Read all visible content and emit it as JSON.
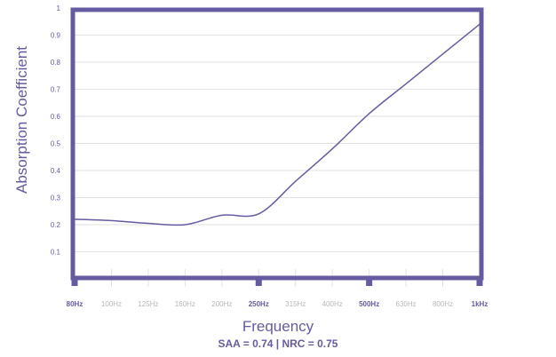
{
  "chart_data": {
    "type": "line",
    "title": "",
    "xlabel": "Frequency",
    "ylabel": "Absorption Coefficient",
    "subtitle": "SAA = 0.74 | NRC = 0.75",
    "categories": [
      "80Hz",
      "100Hz",
      "125Hz",
      "160Hz",
      "200Hz",
      "250Hz",
      "315Hz",
      "400Hz",
      "500Hz",
      "630Hz",
      "800Hz",
      "1kHz"
    ],
    "highlighted_ticks": [
      "80Hz",
      "250Hz",
      "500Hz",
      "1kHz"
    ],
    "yticks": [
      "0.1",
      "0.2",
      "0.3",
      "0.4",
      "0.5",
      "0.6",
      "0.7",
      "0.8",
      "0.9",
      "1"
    ],
    "ylim": [
      0,
      1
    ],
    "grid": true,
    "series": [
      {
        "name": "Absorption Coefficient",
        "values": [
          0.22,
          0.215,
          0.205,
          0.2,
          0.235,
          0.24,
          0.36,
          0.48,
          0.61,
          0.72,
          0.83,
          0.94
        ]
      }
    ],
    "colors": {
      "accent": "#655ba3",
      "grid": "#e2e2e2",
      "tick_label": "#b8b8b8"
    }
  }
}
